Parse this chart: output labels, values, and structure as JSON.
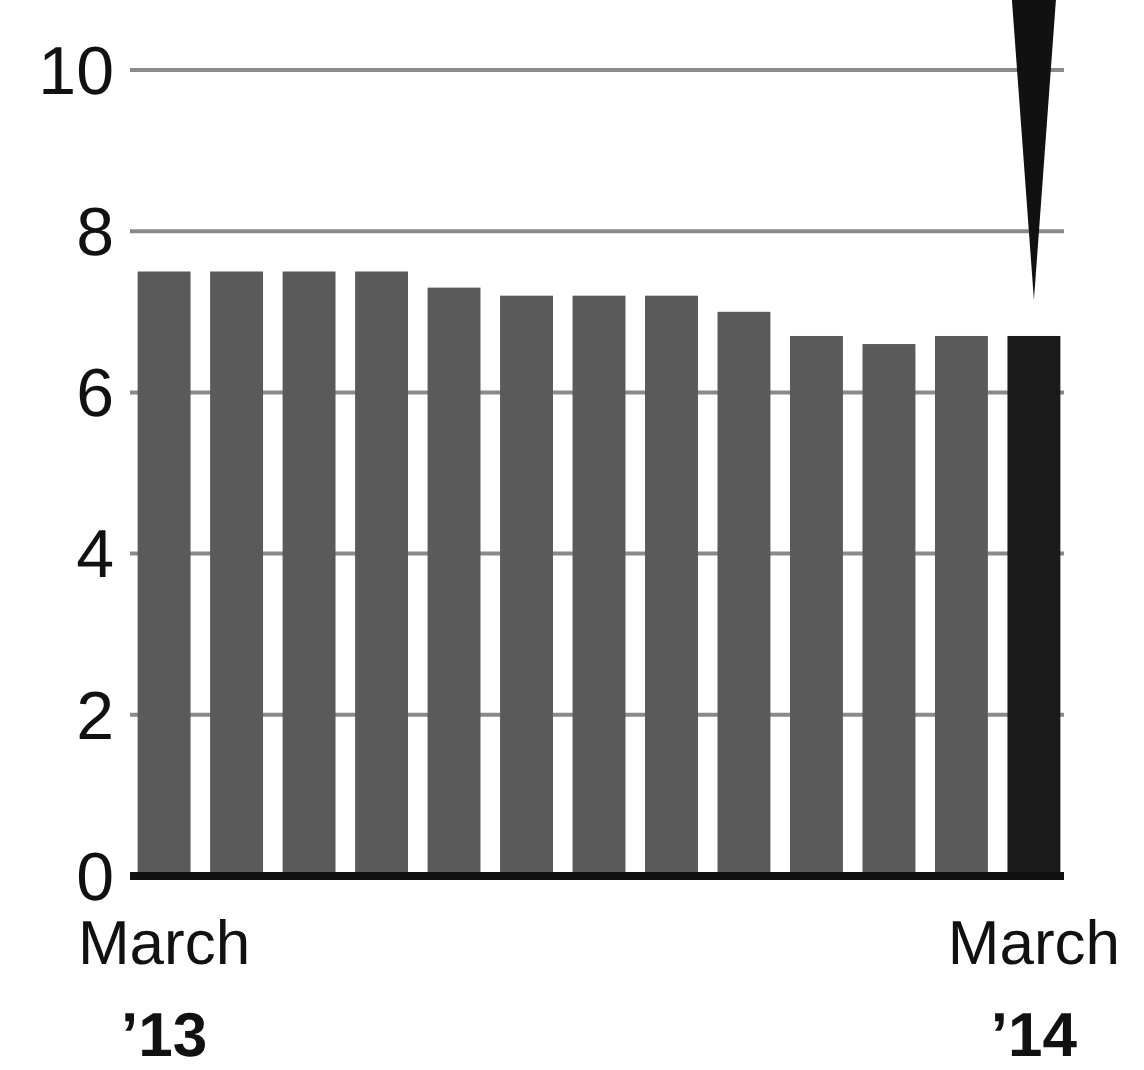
{
  "chart_data": {
    "type": "bar",
    "categories": [
      "March ’13",
      null,
      null,
      null,
      null,
      null,
      null,
      null,
      null,
      null,
      null,
      null,
      "March ’14"
    ],
    "values": [
      7.5,
      7.5,
      7.5,
      7.5,
      7.3,
      7.2,
      7.2,
      7.2,
      7.0,
      6.7,
      6.6,
      6.7,
      6.7
    ],
    "colors": [
      "#5a5a5a",
      "#5a5a5a",
      "#5a5a5a",
      "#5a5a5a",
      "#5a5a5a",
      "#5a5a5a",
      "#5a5a5a",
      "#5a5a5a",
      "#5a5a5a",
      "#5a5a5a",
      "#5a5a5a",
      "#5a5a5a",
      "#1a1a1a"
    ],
    "ylim": [
      0,
      10
    ],
    "yticks": [
      0,
      2,
      4,
      6,
      8,
      10
    ],
    "grid": "y"
  }
}
